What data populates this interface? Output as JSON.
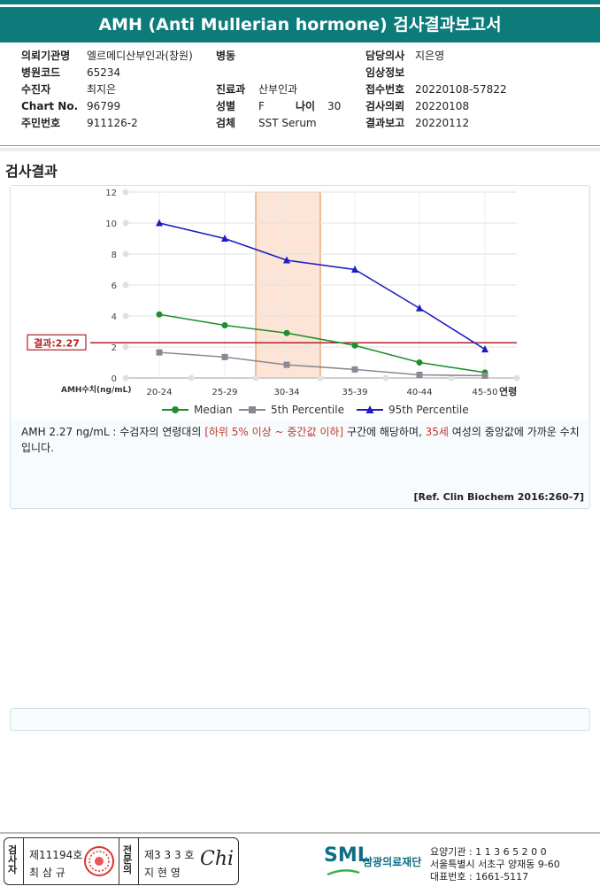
{
  "header": {
    "title": "AMH (Anti Mullerian hormone) 검사결과보고서"
  },
  "info": {
    "institution_label": "의뢰기관명",
    "institution": "엘르메디산부인과(창원)",
    "hospital_code_label": "병원코드",
    "hospital_code": "65234",
    "patient_label": "수진자",
    "patient": "최지은",
    "chart_label": "Chart No.",
    "chart": "96799",
    "id_label": "주민번호",
    "id": "911126-2",
    "ward_label": "병동",
    "ward": "",
    "dept_label": "진료과",
    "dept": "산부인과",
    "sex_label": "성별",
    "sex": "F",
    "age_label": "나이",
    "age": "30",
    "specimen_label": "검체",
    "specimen": "SST Serum",
    "doctor_label": "담당의사",
    "doctor": "지은영",
    "clinical_label": "임상정보",
    "clinical": "",
    "receipt_label": "접수번호",
    "receipt": "20220108-57822",
    "request_label": "검사의뢰",
    "request": "20220108",
    "report_label": "결과보고",
    "report": "20220112"
  },
  "section_title": "검사결과",
  "chart_data": {
    "type": "line",
    "categories": [
      "20-24",
      "25-29",
      "30-34",
      "35-39",
      "40-44",
      "45-50"
    ],
    "series": [
      {
        "name": "Median",
        "values": [
          4.1,
          3.4,
          2.9,
          2.1,
          1.0,
          0.35
        ],
        "color": "#1e8f2e",
        "marker": "circle"
      },
      {
        "name": "5th Percentile",
        "values": [
          1.65,
          1.35,
          0.85,
          0.55,
          0.2,
          0.15
        ],
        "color": "#8b8794",
        "marker": "square"
      },
      {
        "name": "95th Percentile",
        "values": [
          10.0,
          9.0,
          7.6,
          7.0,
          4.5,
          1.85
        ],
        "color": "#1c1cc4",
        "marker": "triangle"
      }
    ],
    "ylim": [
      0,
      12
    ],
    "yticks": [
      0,
      2,
      4,
      6,
      8,
      10,
      12
    ],
    "ylabel": "AMH수치(ng/mL)",
    "xlabel": "연령",
    "result_value": 2.27,
    "result_label": "결과:2.27",
    "highlight_category": "30-34",
    "legend_placement": "bottom",
    "grid": true
  },
  "note": {
    "part1": "AMH  2.27 ng/mL : 수검자의 연령대의 ",
    "range": "[하위 5% 이상 ~ 중간값 이하]",
    "part2": "  구간에 해당하며, ",
    "age": "35세",
    "part3": " 여성의 중앙값에 가까운 수치입니다."
  },
  "reference": "[Ref. Clin Biochem 2016:260-7]",
  "sign": {
    "examiner_v": "검사자",
    "examiner_no": "제11194호",
    "examiner_name": "최 삼 규",
    "specialist_v": "전문의",
    "specialist_no": "제3 3 3 호",
    "specialist_name": "지 현 영",
    "signature": "Chi"
  },
  "footer": {
    "logo": "SML",
    "org": "삼광의료재단",
    "code": "요양기관 : 1 1 3 6 5 2 0 0",
    "address": "서울특별시 서초구 양재동 9-60",
    "phone": "대표번호 : 1661-5117"
  }
}
